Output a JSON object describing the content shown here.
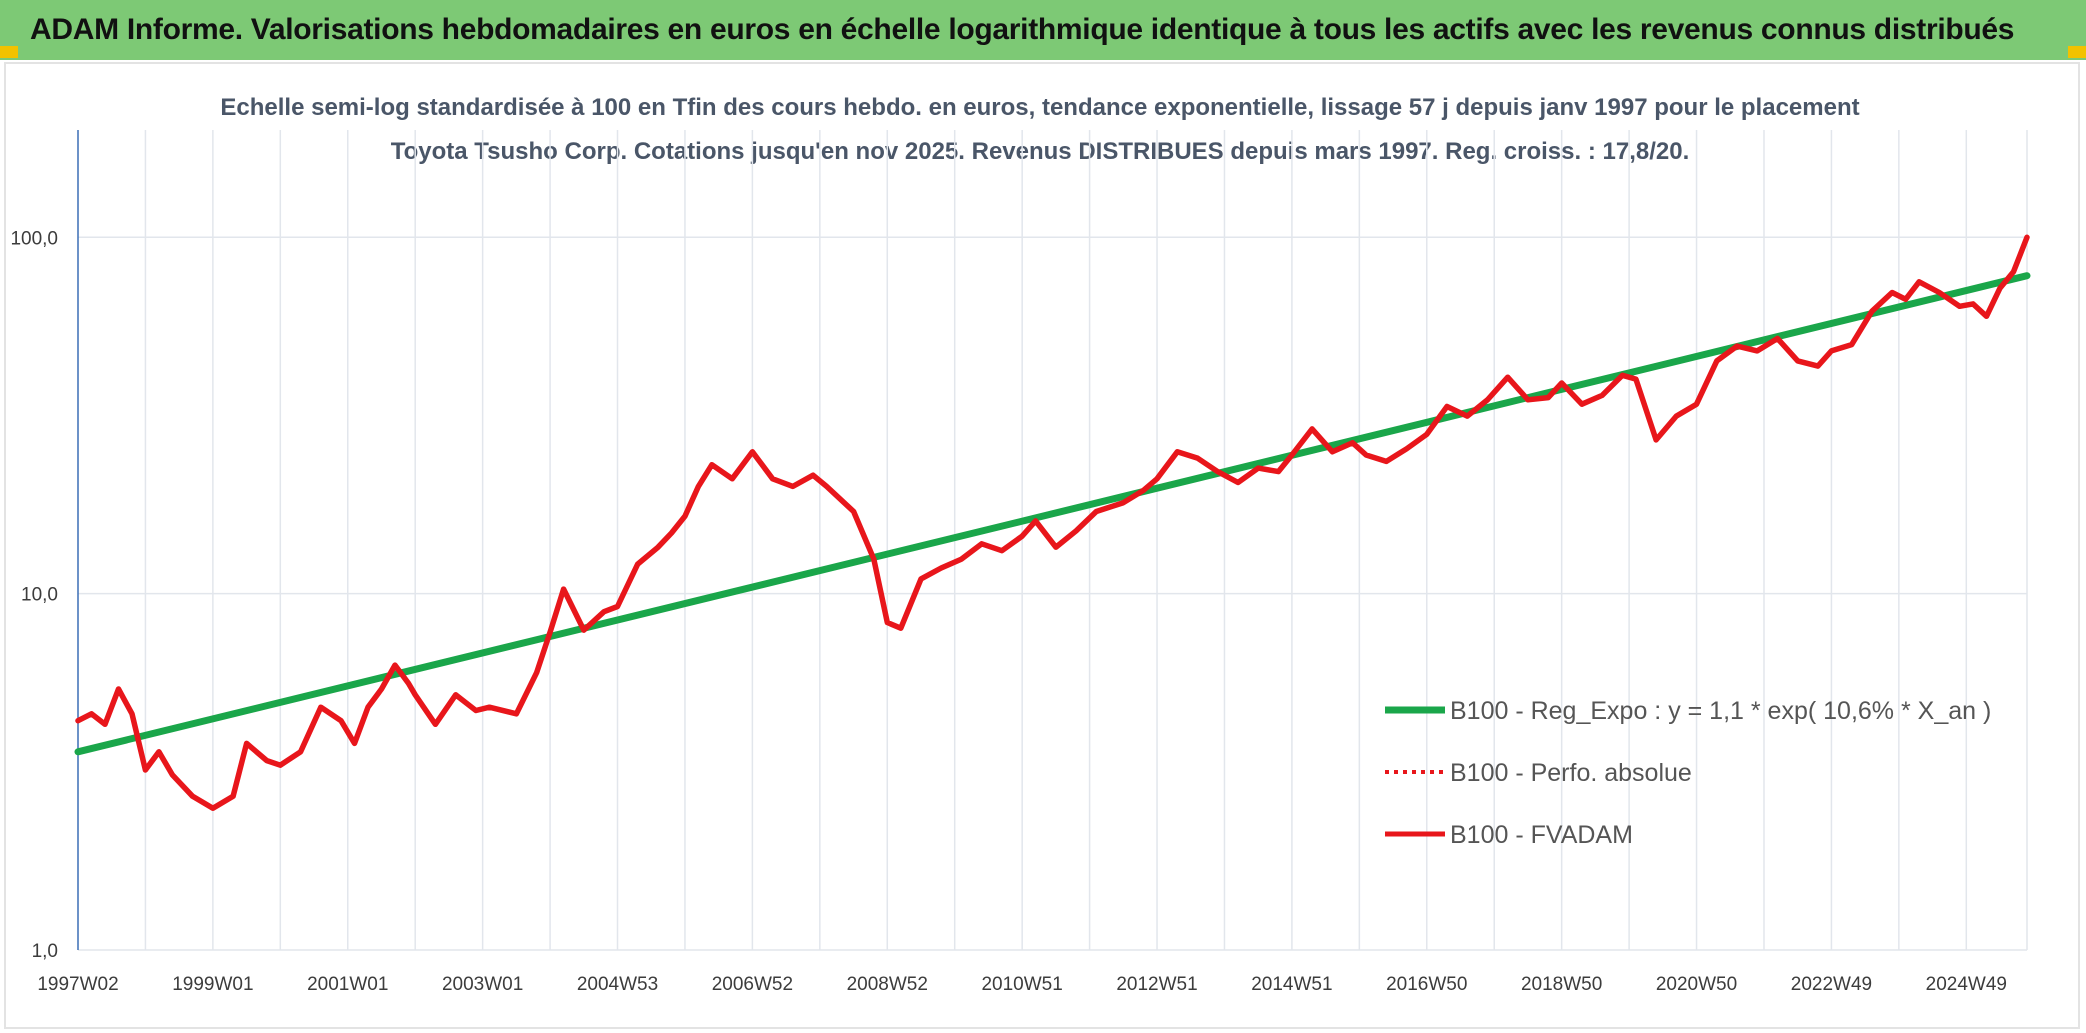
{
  "banner": {
    "title": "ADAM Informe. Valorisations hebdomadaires en euros en échelle logarithmique identique à tous les actifs avec les revenus connus distribués",
    "background": "#7dc975"
  },
  "chart_data": {
    "type": "line",
    "title": "Echelle semi-log standardisée à 100 en Tfin des cours hebdo. en euros, tendance exponentielle, lissage 57 j depuis janv 1997 pour le placement Toyota Tsusho Corp. Cotations jusqu'en nov 2025. Revenus DISTRIBUES depuis mars 1997. Reg. croiss. : 17,8/20.",
    "y_scale": "log",
    "ylim": [
      1,
      200
    ],
    "y_ticks": [
      {
        "value": 1,
        "label": "1,0"
      },
      {
        "value": 10,
        "label": "10,0"
      },
      {
        "value": 100,
        "label": "100,0"
      }
    ],
    "xlim": [
      1997.0,
      2025.9
    ],
    "x_ticks": [
      {
        "value": 1997.0,
        "label": "1997W02"
      },
      {
        "value": 1999.0,
        "label": "1999W01"
      },
      {
        "value": 2001.0,
        "label": "2001W01"
      },
      {
        "value": 2003.0,
        "label": "2003W01"
      },
      {
        "value": 2005.0,
        "label": "2004W53"
      },
      {
        "value": 2007.0,
        "label": "2006W52"
      },
      {
        "value": 2009.0,
        "label": "2008W52"
      },
      {
        "value": 2011.0,
        "label": "2010W51"
      },
      {
        "value": 2013.0,
        "label": "2012W51"
      },
      {
        "value": 2015.0,
        "label": "2014W51"
      },
      {
        "value": 2017.0,
        "label": "2016W50"
      },
      {
        "value": 2019.0,
        "label": "2018W50"
      },
      {
        "value": 2021.0,
        "label": "2020W50"
      },
      {
        "value": 2023.0,
        "label": "2022W49"
      },
      {
        "value": 2025.0,
        "label": "2024W49"
      }
    ],
    "grid": "vertical and horizontal",
    "legend_position": "bottom-right",
    "series": [
      {
        "name": "B100 - Reg_Expo : y = 1,1 * exp( 10,6% *  X_an )",
        "color": "#1aa64a",
        "style": "solid",
        "x": [
          1997.0,
          2025.9
        ],
        "y": [
          3.6,
          78
        ]
      },
      {
        "name": "B100 - Perfo. absolue",
        "color": "#e8161b",
        "style": "dotted",
        "x": [],
        "y": []
      },
      {
        "name": "B100 - FVADAM",
        "color": "#e8161b",
        "style": "solid",
        "x": [
          1997.0,
          1997.2,
          1997.4,
          1997.6,
          1997.8,
          1998.0,
          1998.2,
          1998.4,
          1998.7,
          1999.0,
          1999.3,
          1999.5,
          1999.8,
          2000.0,
          2000.3,
          2000.6,
          2000.9,
          2001.1,
          2001.3,
          2001.5,
          2001.7,
          2001.9,
          2002.0,
          2002.3,
          2002.6,
          2002.9,
          2003.1,
          2003.5,
          2003.8,
          2004.0,
          2004.2,
          2004.5,
          2004.8,
          2005.0,
          2005.3,
          2005.6,
          2005.8,
          2006.0,
          2006.2,
          2006.4,
          2006.7,
          2007.0,
          2007.3,
          2007.6,
          2007.9,
          2008.1,
          2008.5,
          2008.8,
          2009.0,
          2009.2,
          2009.5,
          2009.8,
          2010.1,
          2010.4,
          2010.7,
          2011.0,
          2011.2,
          2011.5,
          2011.8,
          2012.1,
          2012.5,
          2012.8,
          2013.0,
          2013.3,
          2013.6,
          2013.9,
          2014.2,
          2014.5,
          2014.8,
          2015.0,
          2015.3,
          2015.6,
          2015.9,
          2016.1,
          2016.4,
          2016.7,
          2017.0,
          2017.3,
          2017.6,
          2017.9,
          2018.2,
          2018.5,
          2018.8,
          2019.0,
          2019.3,
          2019.6,
          2019.9,
          2020.1,
          2020.4,
          2020.7,
          2021.0,
          2021.3,
          2021.6,
          2021.9,
          2022.2,
          2022.5,
          2022.8,
          2023.0,
          2023.3,
          2023.6,
          2023.9,
          2024.1,
          2024.3,
          2024.6,
          2024.9,
          2025.1,
          2025.3,
          2025.5,
          2025.7,
          2025.9
        ],
        "y": [
          4.4,
          4.6,
          4.3,
          5.4,
          4.6,
          3.2,
          3.6,
          3.1,
          2.7,
          2.5,
          2.7,
          3.8,
          3.4,
          3.3,
          3.6,
          4.8,
          4.4,
          3.8,
          4.8,
          5.4,
          6.3,
          5.6,
          5.2,
          4.3,
          5.2,
          4.7,
          4.8,
          4.6,
          6.0,
          7.8,
          10.3,
          7.9,
          8.9,
          9.2,
          12.1,
          13.5,
          14.8,
          16.5,
          20.0,
          23.0,
          21.0,
          25.0,
          21.0,
          20.0,
          21.5,
          20.0,
          17.0,
          12.5,
          8.3,
          8.0,
          11.0,
          11.8,
          12.5,
          13.8,
          13.2,
          14.5,
          16.0,
          13.5,
          15.0,
          17.0,
          18.0,
          19.5,
          21.0,
          25.0,
          24.0,
          22.0,
          20.5,
          22.5,
          22.0,
          24.5,
          29.0,
          25.0,
          26.5,
          24.5,
          23.5,
          25.5,
          28.0,
          33.5,
          31.5,
          35.0,
          40.5,
          35.0,
          35.5,
          39.0,
          34.0,
          36.0,
          41.0,
          40.0,
          27.0,
          31.5,
          34.0,
          45.0,
          49.5,
          48.0,
          52.0,
          45.0,
          43.5,
          48.0,
          50.0,
          62.0,
          70.0,
          67.0,
          75.0,
          70.0,
          64.0,
          65.0,
          60.0,
          72.0,
          80.0,
          100.0
        ]
      }
    ]
  }
}
